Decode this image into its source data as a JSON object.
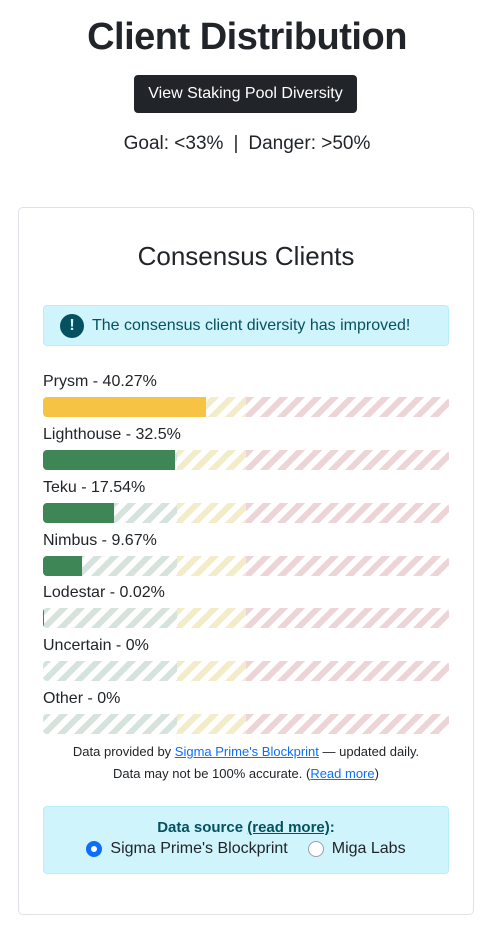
{
  "page": {
    "title": "Client Distribution",
    "toggle_button": "View Staking Pool Diversity",
    "goal_text": "Goal: <33%",
    "separator": "|",
    "danger_text": "Danger: >50%"
  },
  "card": {
    "title": "Consensus Clients",
    "alert": {
      "icon": "!",
      "message": "The consensus client diversity has improved!"
    },
    "clients": [
      {
        "label": "Prysm - 40.27%",
        "percent": 40.27,
        "color": "#f6c344"
      },
      {
        "label": "Lighthouse - 32.5%",
        "percent": 32.5,
        "color": "#3e8655"
      },
      {
        "label": "Teku - 17.54%",
        "percent": 17.54,
        "color": "#3e8655"
      },
      {
        "label": "Nimbus - 9.67%",
        "percent": 9.67,
        "color": "#3e8655"
      },
      {
        "label": "Lodestar - 0.02%",
        "percent": 0.02,
        "color": "#3e8655"
      },
      {
        "label": "Uncertain - 0%",
        "percent": 0,
        "color": "#3e8655"
      },
      {
        "label": "Other - 0%",
        "percent": 0,
        "color": "#3e8655"
      }
    ],
    "footnote": {
      "prefix": "Data provided by ",
      "link": "Sigma Prime's Blockprint",
      "suffix": " — updated daily.",
      "line2_prefix": "Data may not be 100% accurate. (",
      "line2_link": "Read more",
      "line2_suffix": ")"
    },
    "source": {
      "title_prefix": "Data source ",
      "title_link": "(read more)",
      "title_suffix": ":",
      "options": [
        {
          "label": "Sigma Prime's Blockprint",
          "selected": true
        },
        {
          "label": "Miga Labs",
          "selected": false
        }
      ]
    }
  },
  "colors": {
    "good_zone": "#d6e3dd",
    "warn_zone": "#f3ecc9",
    "danger_zone": "#ecd4d7",
    "accent": "#0d6efd"
  }
}
